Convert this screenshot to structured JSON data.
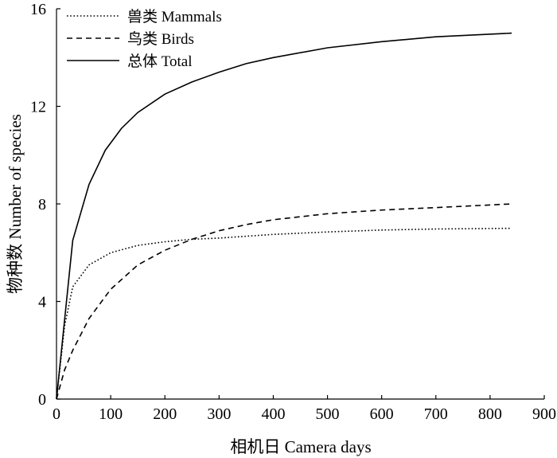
{
  "chart_data": {
    "type": "line",
    "xlabel": "相机日 Camera days",
    "ylabel": "物种数 Number of species",
    "xlim": [
      0,
      900
    ],
    "ylim": [
      0,
      16
    ],
    "xticks": [
      0,
      100,
      200,
      300,
      400,
      500,
      600,
      700,
      800,
      900
    ],
    "yticks": [
      0,
      4,
      8,
      12,
      16
    ],
    "grid": false,
    "legend_position": "top-left",
    "series": [
      {
        "name": "兽类 Mammals",
        "dash": "dotted",
        "x": [
          0,
          15,
          30,
          60,
          100,
          150,
          200,
          250,
          300,
          400,
          500,
          600,
          700,
          840
        ],
        "y": [
          0,
          3.0,
          4.6,
          5.5,
          6.0,
          6.3,
          6.45,
          6.55,
          6.6,
          6.75,
          6.85,
          6.93,
          6.97,
          7.0
        ]
      },
      {
        "name": "鸟类 Birds",
        "dash": "dashed",
        "x": [
          0,
          15,
          30,
          60,
          100,
          150,
          200,
          250,
          300,
          350,
          400,
          500,
          600,
          700,
          840
        ],
        "y": [
          0,
          1.2,
          2.0,
          3.3,
          4.5,
          5.5,
          6.1,
          6.55,
          6.9,
          7.15,
          7.35,
          7.6,
          7.75,
          7.85,
          8.0
        ]
      },
      {
        "name": "总体 Total",
        "dash": "solid",
        "x": [
          0,
          30,
          60,
          90,
          120,
          150,
          200,
          250,
          300,
          350,
          400,
          500,
          600,
          700,
          840
        ],
        "y": [
          0,
          6.5,
          8.8,
          10.2,
          11.1,
          11.75,
          12.5,
          13.0,
          13.4,
          13.75,
          14.0,
          14.4,
          14.65,
          14.85,
          15.0
        ]
      }
    ]
  }
}
